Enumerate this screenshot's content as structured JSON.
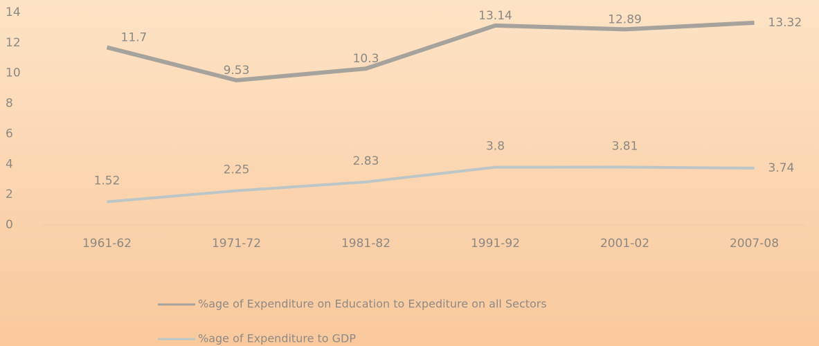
{
  "chart_data": {
    "type": "line",
    "categories": [
      "1961-62",
      "1971-72",
      "1981-82",
      "1991-92",
      "2001-02",
      "2007-08"
    ],
    "series": [
      {
        "name": "%age of Expenditure on Education to Expediture on all Sectors",
        "color": "#a6a29c",
        "values": [
          11.7,
          9.53,
          10.3,
          13.14,
          12.89,
          13.32
        ]
      },
      {
        "name": "%age of Expenditure to GDP",
        "color": "#bcc6c6",
        "values": [
          1.52,
          2.25,
          2.83,
          3.8,
          3.81,
          3.74
        ]
      }
    ],
    "ylim": [
      0,
      14
    ],
    "yticks": [
      0,
      2,
      4,
      6,
      8,
      10,
      12,
      14
    ],
    "grid": false,
    "legend": "bottom"
  }
}
